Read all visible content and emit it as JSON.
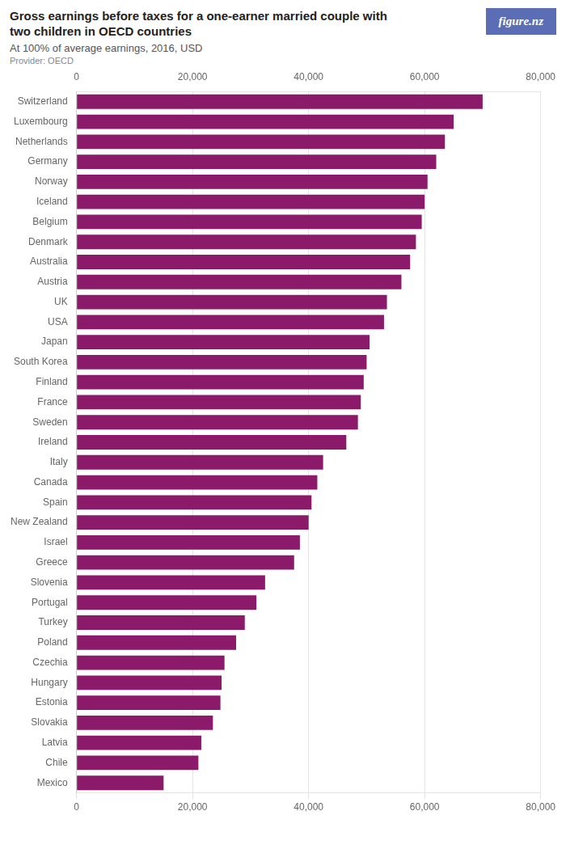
{
  "chart_data": {
    "type": "bar",
    "orientation": "horizontal",
    "title": [
      "Gross earnings before taxes for a one-earner married couple with",
      "two children in OECD countries"
    ],
    "subtitle": "At 100% of average earnings, 2016, USD",
    "annotations": [
      {
        "text": "Provider: OECD"
      },
      {
        "text": "figure.nz",
        "color": "#5B6EB5"
      }
    ],
    "categories": [
      "Switzerland",
      "Luxembourg",
      "Netherlands",
      "Germany",
      "Norway",
      "Iceland",
      "Belgium",
      "Denmark",
      "Australia",
      "Austria",
      "UK",
      "USA",
      "Japan",
      "South Korea",
      "Finland",
      "France",
      "Sweden",
      "Ireland",
      "Italy",
      "Canada",
      "Spain",
      "New Zealand",
      "Israel",
      "Greece",
      "Slovenia",
      "Portugal",
      "Turkey",
      "Poland",
      "Czechia",
      "Hungary",
      "Estonia",
      "Slovakia",
      "Latvia",
      "Chile",
      "Mexico"
    ],
    "values": [
      70000,
      65000,
      63500,
      62000,
      60500,
      60000,
      59500,
      58500,
      57500,
      56000,
      53500,
      53000,
      50500,
      50000,
      49500,
      49000,
      48500,
      46500,
      42500,
      41500,
      40500,
      40000,
      38500,
      37500,
      32500,
      31000,
      29000,
      27500,
      25500,
      25000,
      24800,
      23500,
      21500,
      21000,
      15000
    ],
    "color": "#8B1A6B",
    "xlim": [
      0,
      80000
    ],
    "xticks": [
      0,
      {
        "value": 20000,
        "label": "20,000"
      },
      {
        "value": 40000,
        "label": "40,000"
      },
      {
        "value": 60000,
        "label": "60,000"
      },
      {
        "value": 80000,
        "label": "80,000"
      }
    ],
    "grid": true
  }
}
